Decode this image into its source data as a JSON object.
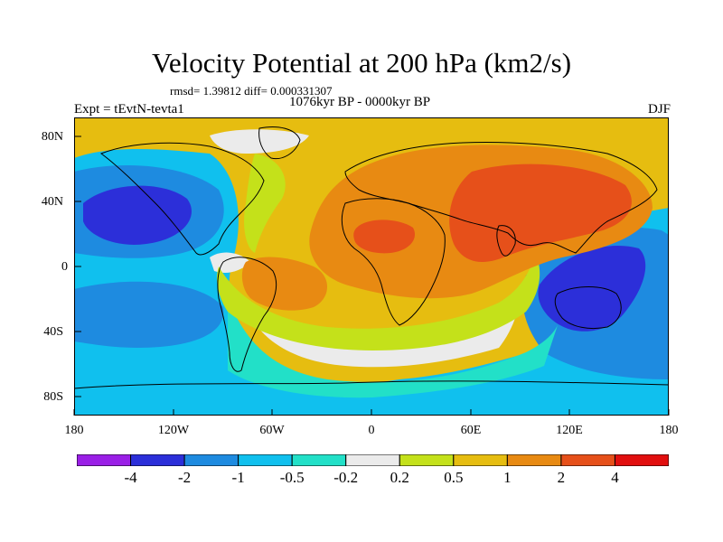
{
  "title": "Velocity Potential at 200 hPa (km2/s)",
  "stats": "rmsd= 1.39812 diff= 0.000331307",
  "period": "1076kyr BP - 0000kyr BP",
  "experiment": "Expt = tEvtN-tevta1",
  "season": "DJF",
  "latitude_labels": [
    "80N",
    "40N",
    "0",
    "40S",
    "80S"
  ],
  "longitude_labels": [
    "180",
    "120W",
    "60W",
    "0",
    "60E",
    "120E",
    "180"
  ],
  "colorbar": {
    "labels": [
      "-4",
      "-2",
      "-1",
      "-0.5",
      "-0.2",
      "0.2",
      "0.5",
      "1",
      "2",
      "4"
    ],
    "colors": [
      "#9a1fe6",
      "#2c2fd9",
      "#1e8be0",
      "#10c0ee",
      "#22e0c8",
      "#ebebeb",
      "#c4e11a",
      "#e6bd10",
      "#e88a12",
      "#e6501a",
      "#e10f0f"
    ]
  }
}
